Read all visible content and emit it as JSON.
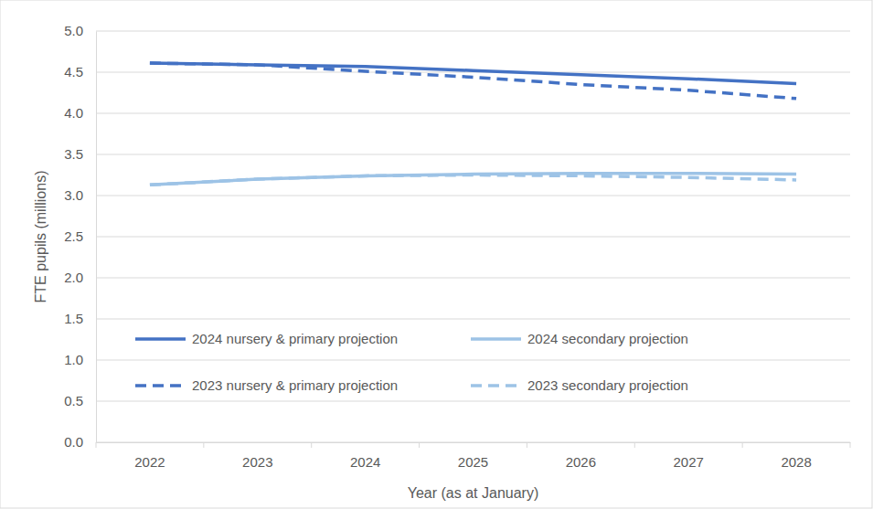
{
  "chart_data": {
    "type": "line",
    "x_label": "Year (as at January)",
    "y_label": "FTE pupils (millions)",
    "categories": [
      "2022",
      "2023",
      "2024",
      "2025",
      "2026",
      "2027",
      "2028"
    ],
    "ylim": [
      0,
      5
    ],
    "yticks": [
      {
        "value": 0,
        "label": "0.0"
      },
      0.5,
      {
        "value": 1,
        "label": "1.0"
      },
      1.5,
      {
        "value": 2,
        "label": "2.0"
      },
      2.5,
      {
        "value": 3,
        "label": "3.0"
      },
      3.5,
      {
        "value": 4,
        "label": "4.0"
      },
      4.5,
      {
        "value": 5,
        "label": "5.0"
      }
    ],
    "grid": true,
    "legend": "bottom",
    "series": [
      {
        "name": "2024 nursery & primary projection",
        "color": "#4472c4",
        "line_style": "solid",
        "marker": "none",
        "values": [
          4.61,
          4.59,
          4.57,
          4.52,
          4.47,
          4.42,
          4.36
        ]
      },
      {
        "name": "2024 secondary projection",
        "color": "#9dc3e6",
        "line_style": "solid",
        "marker": "none",
        "values": [
          3.13,
          3.2,
          3.24,
          3.26,
          3.27,
          3.27,
          3.26
        ]
      },
      {
        "name": "2023 nursery & primary projection",
        "color": "#4472c4",
        "line_style": "dashed",
        "marker": "none",
        "values": [
          4.61,
          4.59,
          4.51,
          4.44,
          4.35,
          4.28,
          4.18
        ]
      },
      {
        "name": "2023 secondary projection",
        "color": "#9dc3e6",
        "line_style": "dashed",
        "marker": "none",
        "values": [
          3.13,
          3.2,
          3.24,
          3.25,
          3.24,
          3.22,
          3.19
        ]
      }
    ]
  }
}
